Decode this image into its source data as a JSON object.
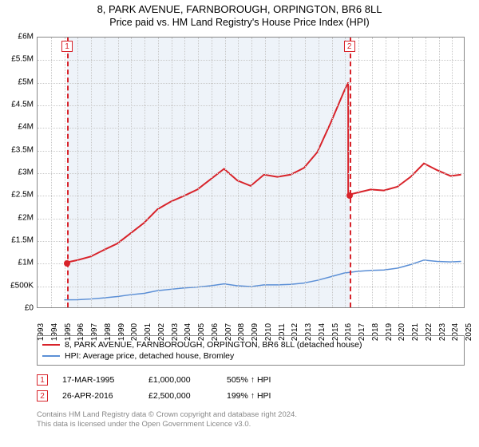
{
  "title": {
    "main": "8, PARK AVENUE, FARNBOROUGH, ORPINGTON, BR6 8LL",
    "sub": "Price paid vs. HM Land Registry's House Price Index (HPI)"
  },
  "chart": {
    "type": "line",
    "background_color": "#ffffff",
    "grid_color": "#c8c8c8",
    "border_color": "#888888",
    "shade_band_color": "#eef3f9",
    "label_fontsize": 10,
    "x": {
      "min": 1993,
      "max": 2025,
      "ticks": [
        1993,
        1994,
        1995,
        1996,
        1997,
        1998,
        1999,
        2000,
        2001,
        2002,
        2003,
        2004,
        2005,
        2006,
        2007,
        2008,
        2009,
        2010,
        2011,
        2012,
        2013,
        2014,
        2015,
        2016,
        2017,
        2018,
        2019,
        2020,
        2021,
        2022,
        2023,
        2024,
        2025
      ]
    },
    "y": {
      "min": 0,
      "max": 6000000,
      "tick_step": 500000,
      "ticks": [
        0,
        500000,
        1000000,
        1500000,
        2000000,
        2500000,
        3000000,
        3500000,
        4000000,
        4500000,
        5000000,
        5500000,
        6000000
      ],
      "labels": [
        "£0",
        "£500K",
        "£1M",
        "£1.5M",
        "£2M",
        "£2.5M",
        "£3M",
        "£3.5M",
        "£4M",
        "£4.5M",
        "£5M",
        "£5.5M",
        "£6M"
      ]
    },
    "shade_bands": [
      {
        "from": 1995.21,
        "to": 2016.32
      }
    ],
    "markers": [
      {
        "id": "1",
        "x": 1995.21,
        "y": 1000000,
        "label_y_top": true
      },
      {
        "id": "2",
        "x": 2016.32,
        "y": 2500000,
        "label_y_top": true
      }
    ],
    "series": [
      {
        "name": "price_paid",
        "color": "#d8232a",
        "width": 2,
        "points": [
          [
            1995.21,
            1000000
          ],
          [
            1996,
            1050000
          ],
          [
            1997,
            1130000
          ],
          [
            1998,
            1280000
          ],
          [
            1999,
            1420000
          ],
          [
            2000,
            1650000
          ],
          [
            2001,
            1880000
          ],
          [
            2002,
            2180000
          ],
          [
            2003,
            2350000
          ],
          [
            2004,
            2480000
          ],
          [
            2005,
            2620000
          ],
          [
            2006,
            2850000
          ],
          [
            2007,
            3080000
          ],
          [
            2008,
            2820000
          ],
          [
            2009,
            2700000
          ],
          [
            2010,
            2950000
          ],
          [
            2011,
            2900000
          ],
          [
            2012,
            2950000
          ],
          [
            2013,
            3100000
          ],
          [
            2014,
            3450000
          ],
          [
            2015,
            4100000
          ],
          [
            2016,
            4800000
          ],
          [
            2016.32,
            5000000
          ],
          [
            2016.32,
            2500000
          ],
          [
            2017,
            2550000
          ],
          [
            2018,
            2620000
          ],
          [
            2019,
            2600000
          ],
          [
            2020,
            2680000
          ],
          [
            2021,
            2900000
          ],
          [
            2022,
            3200000
          ],
          [
            2023,
            3050000
          ],
          [
            2024,
            2920000
          ],
          [
            2024.8,
            2950000
          ]
        ],
        "dots": [
          {
            "x": 1995.21,
            "y": 1000000
          },
          {
            "x": 2016.32,
            "y": 2500000
          }
        ]
      },
      {
        "name": "hpi",
        "color": "#5b8fd6",
        "width": 1.5,
        "points": [
          [
            1995,
            165000
          ],
          [
            1996,
            170000
          ],
          [
            1997,
            185000
          ],
          [
            1998,
            210000
          ],
          [
            1999,
            240000
          ],
          [
            2000,
            280000
          ],
          [
            2001,
            310000
          ],
          [
            2002,
            370000
          ],
          [
            2003,
            400000
          ],
          [
            2004,
            430000
          ],
          [
            2005,
            450000
          ],
          [
            2006,
            480000
          ],
          [
            2007,
            520000
          ],
          [
            2008,
            480000
          ],
          [
            2009,
            460000
          ],
          [
            2010,
            500000
          ],
          [
            2011,
            500000
          ],
          [
            2012,
            510000
          ],
          [
            2013,
            540000
          ],
          [
            2014,
            600000
          ],
          [
            2015,
            680000
          ],
          [
            2016,
            760000
          ],
          [
            2017,
            800000
          ],
          [
            2018,
            820000
          ],
          [
            2019,
            830000
          ],
          [
            2020,
            870000
          ],
          [
            2021,
            950000
          ],
          [
            2022,
            1050000
          ],
          [
            2023,
            1020000
          ],
          [
            2024,
            1010000
          ],
          [
            2024.8,
            1020000
          ]
        ]
      }
    ]
  },
  "legend": {
    "items": [
      {
        "color": "#d8232a",
        "label": "8, PARK AVENUE, FARNBOROUGH, ORPINGTON, BR6 8LL (detached house)"
      },
      {
        "color": "#5b8fd6",
        "label": "HPI: Average price, detached house, Bromley"
      }
    ]
  },
  "sales": [
    {
      "marker": "1",
      "date": "17-MAR-1995",
      "price": "£1,000,000",
      "ratio": "505% ↑ HPI"
    },
    {
      "marker": "2",
      "date": "26-APR-2016",
      "price": "£2,500,000",
      "ratio": "199% ↑ HPI"
    }
  ],
  "footer": {
    "line1": "Contains HM Land Registry data © Crown copyright and database right 2024.",
    "line2": "This data is licensed under the Open Government Licence v3.0."
  },
  "colors": {
    "marker_border": "#d8232a",
    "footer_text": "#888888"
  }
}
